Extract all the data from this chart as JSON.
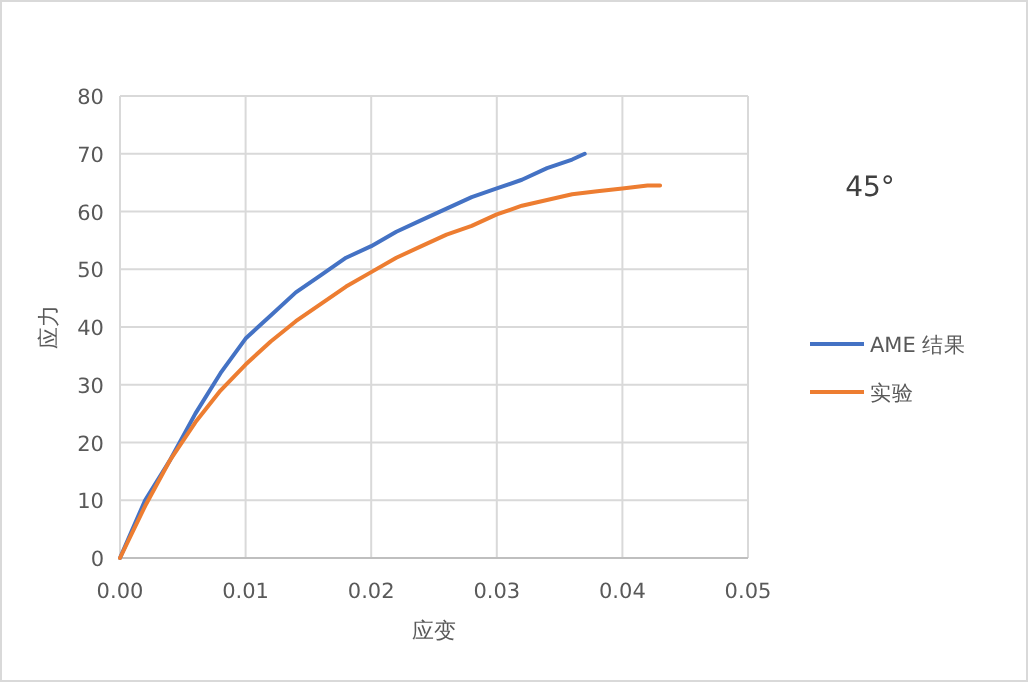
{
  "chart_data": {
    "type": "line",
    "xlabel": "应变",
    "ylabel": "应力",
    "annotations": [
      "45°"
    ],
    "xlim": [
      0,
      0.05
    ],
    "xticks": [
      {
        "value": 0,
        "label": "0.00"
      },
      {
        "value": 0.01,
        "label": "0.01"
      },
      {
        "value": 0.02,
        "label": "0.02"
      },
      {
        "value": 0.03,
        "label": "0.03"
      },
      {
        "value": 0.04,
        "label": "0.04"
      },
      {
        "value": 0.05,
        "label": "0.05"
      }
    ],
    "ylim": [
      0,
      80
    ],
    "yticks": [
      0,
      10,
      20,
      30,
      40,
      50,
      60,
      70,
      80
    ],
    "grid": true,
    "legend": "right",
    "marker": "none",
    "line_style": "solid",
    "series": [
      {
        "name": "AME 结果",
        "color": "#4472c4",
        "x": [
          0,
          0.001,
          0.002,
          0.004,
          0.006,
          0.008,
          0.01,
          0.012,
          0.014,
          0.016,
          0.018,
          0.02,
          0.022,
          0.024,
          0.026,
          0.028,
          0.03,
          0.032,
          0.034,
          0.036,
          0.037
        ],
        "values": [
          0,
          5,
          10,
          17,
          25,
          32,
          38,
          42,
          46,
          49,
          52,
          54,
          56.5,
          58.5,
          60.5,
          62.5,
          64,
          65.5,
          67.5,
          69,
          70
        ]
      },
      {
        "name": "实验",
        "color": "#ed7d31",
        "x": [
          0,
          0.002,
          0.004,
          0.006,
          0.008,
          0.01,
          0.012,
          0.014,
          0.016,
          0.018,
          0.02,
          0.022,
          0.024,
          0.026,
          0.028,
          0.03,
          0.032,
          0.034,
          0.036,
          0.038,
          0.04,
          0.042,
          0.043
        ],
        "values": [
          0,
          9,
          17,
          23.5,
          29,
          33.5,
          37.5,
          41,
          44,
          47,
          49.5,
          52,
          54,
          56,
          57.5,
          59.5,
          61,
          62,
          63,
          63.5,
          64,
          64.5,
          64.5
        ]
      }
    ]
  }
}
